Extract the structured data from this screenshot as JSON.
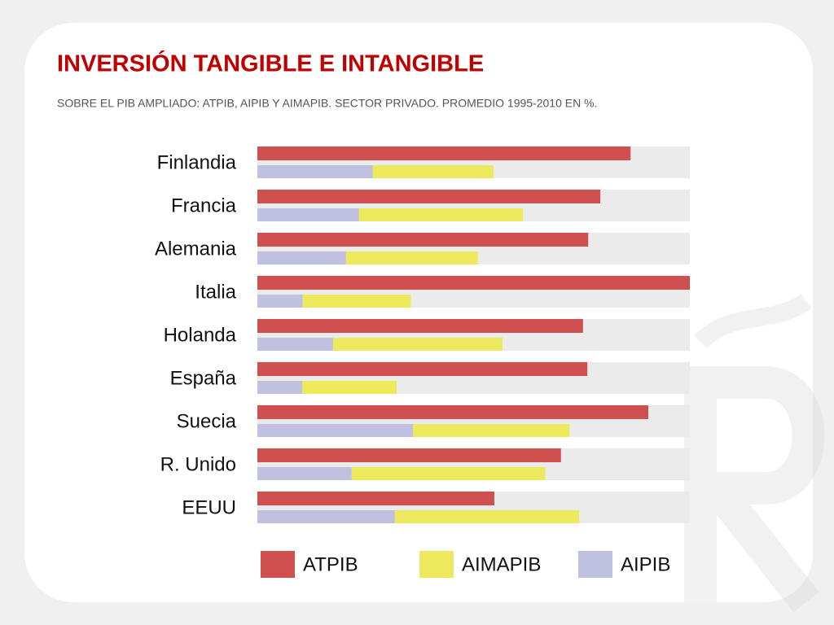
{
  "chart_data": {
    "type": "bar",
    "title": "INVERSIÓN TANGIBLE E INTANGIBLE",
    "subtitle": "SOBRE EL PIB AMPLIADO: ATPIB, AIPIB Y AIMAPIB. SECTOR PRIVADO. PROMEDIO 1995-2010 EN %.",
    "categories": [
      "Finlandia",
      "Francia",
      "Alemania",
      "Italia",
      "Holanda",
      "España",
      "Suecia",
      "R. Unido",
      "EEUU"
    ],
    "series": [
      {
        "name": "ATPIB",
        "color": "#d05050",
        "values": [
          86.3,
          79.3,
          76.5,
          100,
          75.3,
          76.3,
          90.4,
          70.2,
          54.8
        ]
      },
      {
        "name": "AIMAPIB",
        "color": "#ece95c",
        "values": [
          27.9,
          37.9,
          30.5,
          25.0,
          39.2,
          21.8,
          36.2,
          44.8,
          42.6
        ]
      },
      {
        "name": "AIPIB",
        "color": "#c0c0e0",
        "values": [
          26.7,
          23.5,
          20.5,
          10.5,
          17.5,
          10.4,
          36.0,
          21.8,
          31.8
        ]
      }
    ],
    "xlim": [
      0,
      100
    ]
  }
}
